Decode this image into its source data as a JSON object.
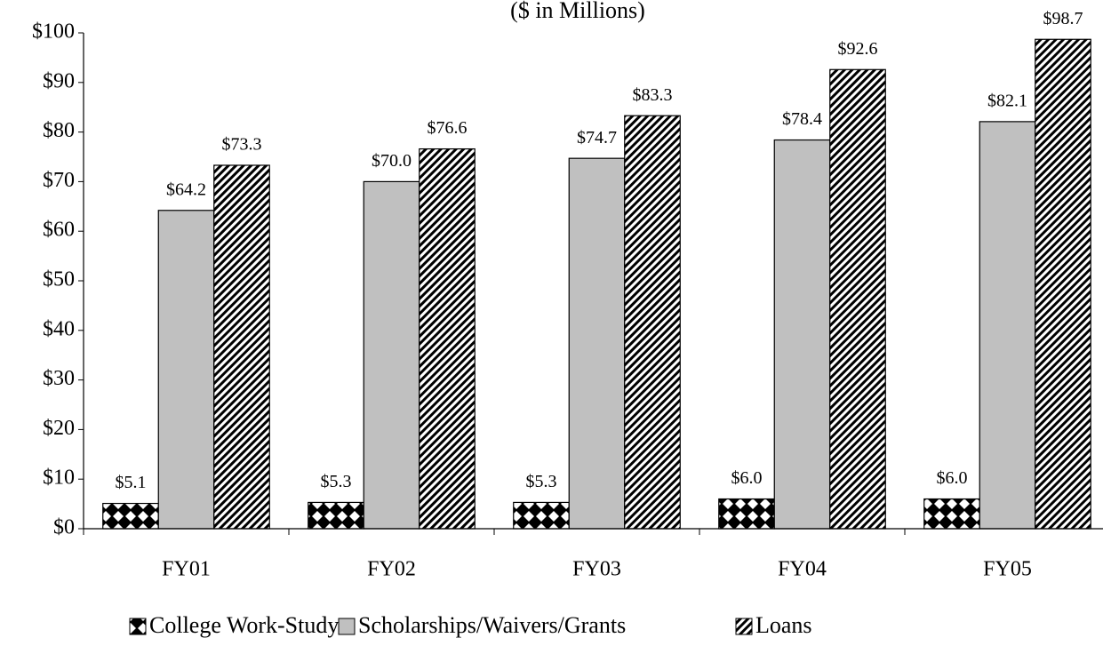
{
  "chart_data": {
    "type": "bar",
    "title": "($ in Millions)",
    "categories": [
      "FY01",
      "FY02",
      "FY03",
      "FY04",
      "FY05"
    ],
    "series": [
      {
        "name": "College Work-Study",
        "color": "#000000",
        "pattern": "diamond",
        "values": [
          5.1,
          5.3,
          5.3,
          6.0,
          6.0
        ],
        "value_labels": [
          "$5.1",
          "$5.3",
          "$5.3",
          "$6.0",
          "$6.0"
        ]
      },
      {
        "name": "Scholarships/Waivers/Grants",
        "color": "#c0c0c0",
        "values": [
          64.2,
          70.0,
          74.7,
          78.4,
          82.1
        ],
        "value_labels": [
          "$64.2",
          "$70.0",
          "$74.7",
          "$78.4",
          "$82.1"
        ]
      },
      {
        "name": "Loans",
        "color": "#000000",
        "pattern": "hatch",
        "values": [
          73.3,
          76.6,
          83.3,
          92.6,
          98.7
        ],
        "value_labels": [
          "$73.3",
          "$76.6",
          "$83.3",
          "$92.6",
          "$98.7"
        ]
      }
    ],
    "ylim": [
      0,
      100
    ],
    "yticks": [
      {
        "value": 0,
        "label": "$0"
      },
      {
        "value": 10,
        "label": "$10"
      },
      {
        "value": 20,
        "label": "$20"
      },
      {
        "value": 30,
        "label": "$30"
      },
      {
        "value": 40,
        "label": "$40"
      },
      {
        "value": 50,
        "label": "$50"
      },
      {
        "value": 60,
        "label": "$60"
      },
      {
        "value": 70,
        "label": "$70"
      },
      {
        "value": 80,
        "label": "$80"
      },
      {
        "value": 90,
        "label": "$90"
      },
      {
        "value": 100,
        "label": "$100"
      }
    ],
    "grid": false,
    "legend": "bottom"
  }
}
